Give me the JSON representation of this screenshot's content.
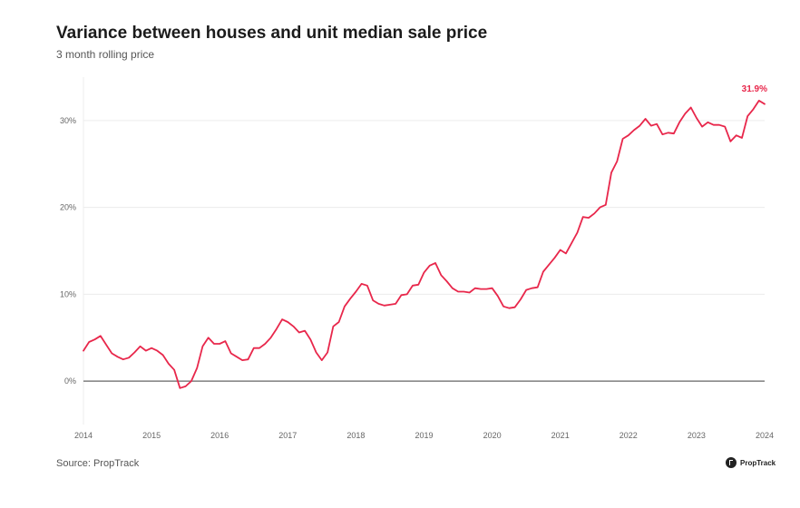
{
  "header": {
    "title": "Variance between houses and unit median sale price",
    "subtitle": "3 month rolling price"
  },
  "footer": {
    "source": "Source: PropTrack",
    "logo_text": "PropTrack"
  },
  "chart_data": {
    "type": "line",
    "title": "Variance between houses and unit median sale price",
    "subtitle": "3 month rolling price",
    "xlabel": "",
    "ylabel": "",
    "xlim": [
      2014,
      2024
    ],
    "ylim": [
      -5,
      35
    ],
    "grid": true,
    "line_color": "#e8274b",
    "x_ticks": [
      "2014",
      "2015",
      "2016",
      "2017",
      "2018",
      "2019",
      "2020",
      "2021",
      "2022",
      "2023",
      "2024"
    ],
    "y_ticks": [
      {
        "value": 0,
        "label": "0%"
      },
      {
        "value": 10,
        "label": "10%"
      },
      {
        "value": 20,
        "label": "20%"
      },
      {
        "value": 30,
        "label": "30%"
      }
    ],
    "end_label": "31.9%",
    "series": [
      {
        "x": [
          2014.0,
          2014.083,
          2014.167,
          2014.25,
          2014.333,
          2014.417,
          2014.5,
          2014.583,
          2014.667,
          2014.75,
          2014.833,
          2014.917,
          2015.0,
          2015.083,
          2015.167,
          2015.25,
          2015.333,
          2015.417,
          2015.5,
          2015.583,
          2015.667,
          2015.75,
          2015.833,
          2015.917,
          2016.0,
          2016.083,
          2016.167,
          2016.25,
          2016.333,
          2016.417,
          2016.5,
          2016.583,
          2016.667,
          2016.75,
          2016.833,
          2016.917,
          2017.0,
          2017.083,
          2017.167,
          2017.25,
          2017.333,
          2017.417,
          2017.5,
          2017.583,
          2017.667,
          2017.75,
          2017.833,
          2017.917,
          2018.0,
          2018.083,
          2018.167,
          2018.25,
          2018.333,
          2018.417,
          2018.5,
          2018.583,
          2018.667,
          2018.75,
          2018.833,
          2018.917,
          2019.0,
          2019.083,
          2019.167,
          2019.25,
          2019.333,
          2019.417,
          2019.5,
          2019.583,
          2019.667,
          2019.75,
          2019.833,
          2019.917,
          2020.0,
          2020.083,
          2020.167,
          2020.25,
          2020.333,
          2020.417,
          2020.5,
          2020.583,
          2020.667,
          2020.75,
          2020.833,
          2020.917,
          2021.0,
          2021.083,
          2021.167,
          2021.25,
          2021.333,
          2021.417,
          2021.5,
          2021.583,
          2021.667,
          2021.75,
          2021.833,
          2021.917,
          2022.0,
          2022.083,
          2022.167,
          2022.25,
          2022.333,
          2022.417,
          2022.5,
          2022.583,
          2022.667,
          2022.75,
          2022.833,
          2022.917,
          2023.0,
          2023.083,
          2023.167,
          2023.25,
          2023.333,
          2023.417,
          2023.5,
          2023.583,
          2023.667,
          2023.75,
          2023.833,
          2023.917,
          2024.0
        ],
        "y": [
          3.5,
          4.5,
          4.8,
          5.2,
          4.2,
          3.2,
          2.8,
          2.5,
          2.7,
          3.3,
          4.0,
          3.5,
          3.8,
          3.5,
          3.0,
          2.0,
          1.3,
          -0.8,
          -0.6,
          0.0,
          1.5,
          4.0,
          5.0,
          4.3,
          4.3,
          4.6,
          3.2,
          2.8,
          2.4,
          2.5,
          3.8,
          3.8,
          4.3,
          5.0,
          6.0,
          7.1,
          6.8,
          6.3,
          5.6,
          5.8,
          4.8,
          3.3,
          2.4,
          3.3,
          6.3,
          6.8,
          8.6,
          9.5,
          10.3,
          11.2,
          11.0,
          9.3,
          8.9,
          8.7,
          8.8,
          8.9,
          9.9,
          10.0,
          11.0,
          11.1,
          12.5,
          13.3,
          13.6,
          12.2,
          11.5,
          10.7,
          10.3,
          10.3,
          10.2,
          10.7,
          10.6,
          10.6,
          10.7,
          9.8,
          8.6,
          8.4,
          8.5,
          9.4,
          10.5,
          10.7,
          10.8,
          12.6,
          13.4,
          14.2,
          15.1,
          14.7,
          15.9,
          17.1,
          18.9,
          18.8,
          19.3,
          20.0,
          20.3,
          24.0,
          25.3,
          27.9,
          28.3,
          28.9,
          29.4,
          30.2,
          29.4,
          29.6,
          28.4,
          28.6,
          28.5,
          29.8,
          30.8,
          31.5,
          30.3,
          29.3,
          29.8,
          29.5,
          29.5,
          29.3,
          27.6,
          28.3,
          28.0,
          30.5,
          31.3,
          32.3,
          31.9
        ]
      }
    ]
  }
}
